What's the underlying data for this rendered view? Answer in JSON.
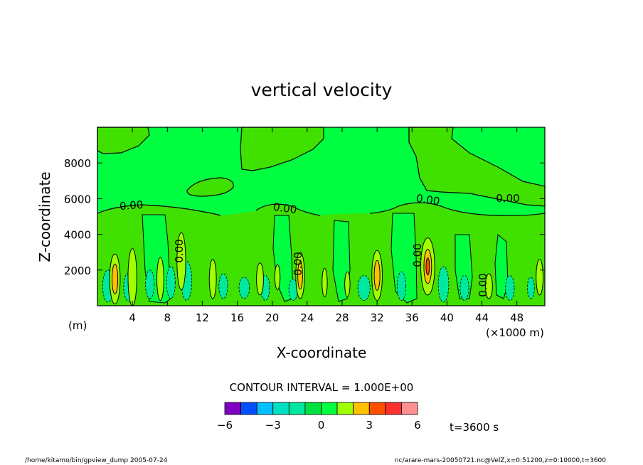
{
  "chart_data": {
    "type": "heatmap",
    "title": "vertical velocity",
    "xlabel": "X-coordinate",
    "ylabel": "Z-coordinate",
    "x_unit": "(×1000 m)",
    "y_unit": "(m)",
    "xlim": [
      0,
      51.2
    ],
    "ylim": [
      0,
      10000
    ],
    "x_ticks": [
      "4",
      "8",
      "12",
      "16",
      "20",
      "24",
      "28",
      "32",
      "36",
      "40",
      "44",
      "48"
    ],
    "y_ticks": [
      "2000",
      "4000",
      "6000",
      "8000"
    ],
    "contour_labels": [
      "0.00",
      "0.00",
      "0.00",
      "0.00",
      "0.00",
      "0.00",
      "0.00",
      "0.00"
    ],
    "contour_interval_text": "CONTOUR INTERVAL = 1.000E+00",
    "colorbar": {
      "levels": [
        -6,
        -5,
        -4,
        -3,
        -2,
        -1,
        0,
        1,
        2,
        3,
        4,
        5,
        6
      ],
      "tick_labels": [
        "−6",
        "−3",
        "0",
        "3",
        "6"
      ],
      "colors": [
        "#8000c0",
        "#0000d0",
        "#0050ff",
        "#00c0ff",
        "#00e0c0",
        "#00e8a0",
        "#00e040",
        "#00ff40",
        "#a0ff00",
        "#ffc000",
        "#ff5000",
        "#ff3030",
        "#ff9090"
      ]
    },
    "time_label": "t=3600 s",
    "field_colors": {
      "background": "#00ff40",
      "positive_band": "#40e000",
      "up1": "#a0ff00",
      "up2": "#ffc000",
      "up3": "#ff5000",
      "down": "#00e8a0"
    }
  },
  "footer": {
    "left": "/home/kitamo/bin/gpview_dump  2005-07-24",
    "right": "nc/arare-mars-20050721.nc@VelZ,x=0:51200,z=0:10000,t=3600"
  }
}
